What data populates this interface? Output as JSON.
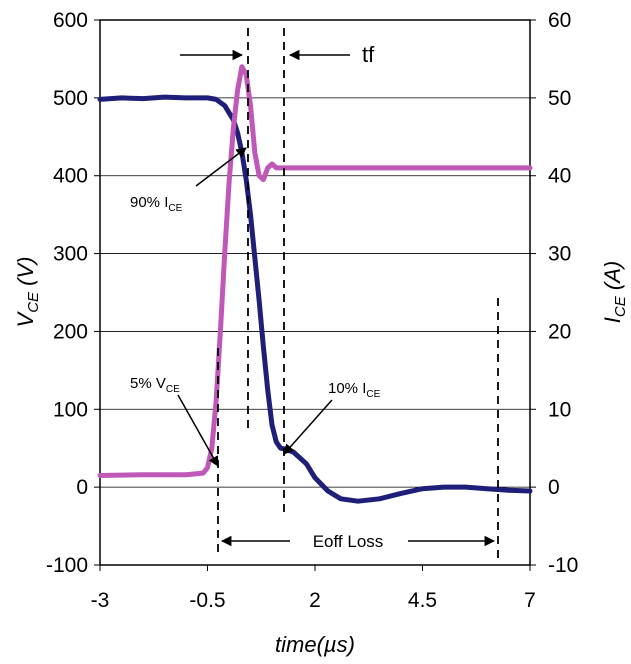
{
  "chart_data": {
    "type": "line",
    "xlabel": "time(µs)",
    "ylabel_left": "V",
    "ylabel_left_sub": "CE",
    "ylabel_left_unit": " (V)",
    "ylabel_right": "I",
    "ylabel_right_sub": "CE",
    "ylabel_right_unit": " (A)",
    "xlim": [
      -3,
      7
    ],
    "ylim_left": [
      -100,
      600
    ],
    "ylim_right": [
      -10,
      60
    ],
    "x_ticks": [
      "-3",
      "-0.5",
      "2",
      "4.5",
      "7"
    ],
    "y_left_ticks": [
      "-100",
      "0",
      "100",
      "200",
      "300",
      "400",
      "500",
      "600"
    ],
    "y_right_ticks": [
      "-10",
      "0",
      "10",
      "20",
      "30",
      "40",
      "50",
      "60"
    ],
    "grid": "horizontal",
    "series": [
      {
        "color": "#1f1f7a",
        "axis": "left",
        "x": [
          -3.0,
          -2.5,
          -2.0,
          -1.5,
          -1.0,
          -0.5,
          -0.3,
          -0.1,
          0.1,
          0.2,
          0.3,
          0.4,
          0.5,
          0.6,
          0.7,
          0.8,
          0.9,
          1.0,
          1.1,
          1.2,
          1.3,
          1.5,
          1.8,
          2.0,
          2.3,
          2.6,
          3.0,
          3.5,
          4.0,
          4.5,
          5.0,
          5.5,
          6.0,
          6.5,
          7.0
        ],
        "y": [
          498,
          500,
          499,
          501,
          500,
          500,
          498,
          490,
          472,
          455,
          430,
          395,
          350,
          295,
          240,
          180,
          125,
          80,
          58,
          50,
          49,
          45,
          30,
          12,
          -5,
          -15,
          -18,
          -15,
          -8,
          -2,
          0,
          0,
          -2,
          -4,
          -5
        ]
      },
      {
        "color": "#c058b8",
        "axis": "right",
        "x": [
          -3.0,
          -2.0,
          -1.0,
          -0.6,
          -0.5,
          -0.4,
          -0.3,
          -0.2,
          -0.1,
          0.0,
          0.1,
          0.2,
          0.3,
          0.4,
          0.5,
          0.6,
          0.7,
          0.8,
          0.9,
          1.0,
          1.1,
          1.2,
          1.5,
          2.0,
          3.0,
          4.0,
          5.0,
          6.0,
          7.0
        ],
        "y": [
          1.5,
          1.6,
          1.6,
          1.8,
          2.5,
          5,
          11,
          20,
          30,
          39,
          46,
          51,
          54,
          53,
          49,
          43,
          40,
          39.5,
          41,
          41.5,
          41,
          41,
          41,
          41,
          41,
          41,
          41,
          41,
          41
        ]
      }
    ],
    "annotations": {
      "tf": "tf",
      "v90_main": "90% I",
      "v90_sub": "CE",
      "v5_main": "5% V",
      "v5_sub": "CE",
      "i10_main": "10% I",
      "i10_sub": "CE",
      "eoff": "Eoff Loss"
    }
  }
}
